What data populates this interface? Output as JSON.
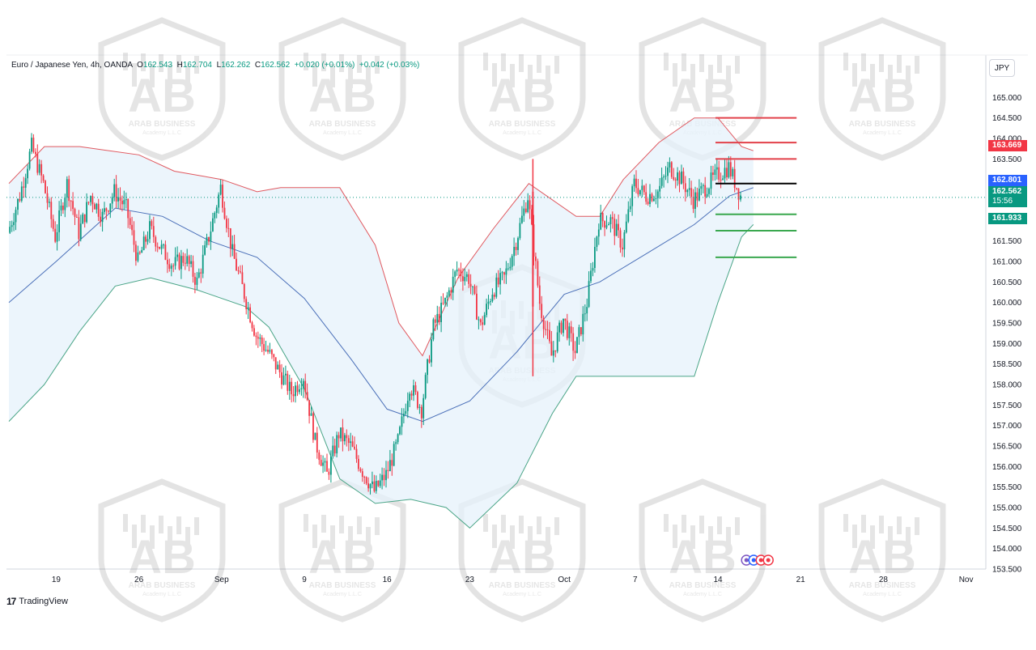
{
  "header": {
    "symbol": "Euro / Japanese Yen, 4h, OANDA",
    "open_label": "O",
    "open": "162.543",
    "high_label": "H",
    "high": "162.704",
    "low_label": "L",
    "low": "162.262",
    "close_label": "C",
    "close": "162.562",
    "change": "+0.020 (+0.01%)",
    "change2": "+0.042 (+0.03%)"
  },
  "currency_label": "JPY",
  "branding": {
    "tv_logo": "17",
    "tv_name": "TradingView"
  },
  "watermark": {
    "name": "ARAB BUSINESS",
    "sub": "Academy L.L.C",
    "letters": "AB"
  },
  "price_tags": {
    "upper": "163.669",
    "middle": "162.801",
    "last": "162.562",
    "countdown": "15:56",
    "lower": "161.933"
  },
  "colors": {
    "up": "#089981",
    "down": "#f23645",
    "band_upper": "#e0585f",
    "band_mid": "#4a6fb8",
    "band_lower": "#4aa587",
    "band_fill": "#e6f2fb",
    "resistance": "#e2414a",
    "support": "#3aa84f",
    "pivot": "#000000",
    "middle_tag": "#2962ff",
    "upper_tag": "#f23645",
    "last_tag": "#089981"
  },
  "chart_data": {
    "type": "candlestick",
    "symbol": "EURJPY",
    "timeframe": "4h",
    "y_ticks": [
      "165.000",
      "164.500",
      "164.000",
      "163.500",
      "163.000",
      "162.500",
      "162.000",
      "161.500",
      "161.000",
      "160.500",
      "160.000",
      "159.500",
      "159.000",
      "158.500",
      "158.000",
      "157.500",
      "157.000",
      "156.500",
      "156.000",
      "155.500",
      "155.000",
      "154.500",
      "154.000",
      "153.500"
    ],
    "ylim": [
      153.5,
      165.5
    ],
    "x_ticks": [
      "19",
      "26",
      "Sep",
      "9",
      "16",
      "23",
      "Oct",
      "7",
      "14",
      "21",
      "28",
      "Nov"
    ],
    "close_path": [
      {
        "d": "Aug 15",
        "c": 161.7
      },
      {
        "d": "Aug 16",
        "c": 162.6
      },
      {
        "d": "Aug 17",
        "c": 163.8
      },
      {
        "d": "Aug 18",
        "c": 162.9
      },
      {
        "d": "Aug 19",
        "c": 161.6
      },
      {
        "d": "Aug 20",
        "c": 162.9
      },
      {
        "d": "Aug 21",
        "c": 161.7
      },
      {
        "d": "Aug 22",
        "c": 162.6
      },
      {
        "d": "Aug 23",
        "c": 162.1
      },
      {
        "d": "Aug 24",
        "c": 162.7
      },
      {
        "d": "Aug 25",
        "c": 162.3
      },
      {
        "d": "Aug 26",
        "c": 161.0
      },
      {
        "d": "Aug 27",
        "c": 161.8
      },
      {
        "d": "Aug 28",
        "c": 161.3
      },
      {
        "d": "Aug 29",
        "c": 160.9
      },
      {
        "d": "Aug 30",
        "c": 161.1
      },
      {
        "d": "Aug 31",
        "c": 160.5
      },
      {
        "d": "Sep 1",
        "c": 161.6
      },
      {
        "d": "Sep 2",
        "c": 162.8
      },
      {
        "d": "Sep 3",
        "c": 161.2
      },
      {
        "d": "Sep 4",
        "c": 160.2
      },
      {
        "d": "Sep 5",
        "c": 159.2
      },
      {
        "d": "Sep 6",
        "c": 158.8
      },
      {
        "d": "Sep 7",
        "c": 158.3
      },
      {
        "d": "Sep 8",
        "c": 157.8
      },
      {
        "d": "Sep 9",
        "c": 158.2
      },
      {
        "d": "Sep 10",
        "c": 156.6
      },
      {
        "d": "Sep 11",
        "c": 155.8
      },
      {
        "d": "Sep 12",
        "c": 156.8
      },
      {
        "d": "Sep 13",
        "c": 156.5
      },
      {
        "d": "Sep 14",
        "c": 155.9
      },
      {
        "d": "Sep 15",
        "c": 155.4
      },
      {
        "d": "Sep 16",
        "c": 155.8
      },
      {
        "d": "Sep 17",
        "c": 156.6
      },
      {
        "d": "Sep 18",
        "c": 158.0
      },
      {
        "d": "Sep 19",
        "c": 157.4
      },
      {
        "d": "Sep 20",
        "c": 159.4
      },
      {
        "d": "Sep 21",
        "c": 160.0
      },
      {
        "d": "Sep 22",
        "c": 160.8
      },
      {
        "d": "Sep 23",
        "c": 160.6
      },
      {
        "d": "Sep 24",
        "c": 159.4
      },
      {
        "d": "Sep 25",
        "c": 160.3
      },
      {
        "d": "Sep 26",
        "c": 160.6
      },
      {
        "d": "Sep 27",
        "c": 161.5
      },
      {
        "d": "Sep 28",
        "c": 162.6
      },
      {
        "d": "Sep 29",
        "c": 160.0
      },
      {
        "d": "Sep 30",
        "c": 158.7
      },
      {
        "d": "Oct 1",
        "c": 159.6
      },
      {
        "d": "Oct 2",
        "c": 158.8
      },
      {
        "d": "Oct 3",
        "c": 160.0
      },
      {
        "d": "Oct 4",
        "c": 162.0
      },
      {
        "d": "Oct 5",
        "c": 162.0
      },
      {
        "d": "Oct 6",
        "c": 161.4
      },
      {
        "d": "Oct 7",
        "c": 162.9
      },
      {
        "d": "Oct 8",
        "c": 162.6
      },
      {
        "d": "Oct 9",
        "c": 162.7
      },
      {
        "d": "Oct 10",
        "c": 163.3
      },
      {
        "d": "Oct 11",
        "c": 163.0
      },
      {
        "d": "Oct 12",
        "c": 162.5
      },
      {
        "d": "Oct 13",
        "c": 162.8
      },
      {
        "d": "Oct 14",
        "c": 163.1
      },
      {
        "d": "Oct 15",
        "c": 163.3
      },
      {
        "d": "Oct 16",
        "c": 162.6
      }
    ],
    "bollinger": {
      "upper": [
        {
          "d": "Aug 15",
          "v": 162.9
        },
        {
          "d": "Aug 18",
          "v": 163.8
        },
        {
          "d": "Aug 21",
          "v": 163.8
        },
        {
          "d": "Aug 26",
          "v": 163.6
        },
        {
          "d": "Aug 29",
          "v": 163.2
        },
        {
          "d": "Sep 2",
          "v": 163.0
        },
        {
          "d": "Sep 5",
          "v": 162.7
        },
        {
          "d": "Sep 7",
          "v": 162.8
        },
        {
          "d": "Sep 10",
          "v": 162.8
        },
        {
          "d": "Sep 12",
          "v": 162.8
        },
        {
          "d": "Sep 15",
          "v": 161.4
        },
        {
          "d": "Sep 17",
          "v": 159.5
        },
        {
          "d": "Sep 19",
          "v": 158.7
        },
        {
          "d": "Sep 22",
          "v": 160.6
        },
        {
          "d": "Sep 25",
          "v": 161.8
        },
        {
          "d": "Sep 28",
          "v": 162.9
        },
        {
          "d": "Oct 2",
          "v": 162.1
        },
        {
          "d": "Oct 4",
          "v": 162.1
        },
        {
          "d": "Oct 6",
          "v": 163.0
        },
        {
          "d": "Oct 9",
          "v": 163.9
        },
        {
          "d": "Oct 12",
          "v": 164.5
        },
        {
          "d": "Oct 14",
          "v": 164.5
        },
        {
          "d": "Oct 16",
          "v": 163.8
        },
        {
          "d": "Oct 17",
          "v": 163.7
        }
      ],
      "middle": [
        {
          "d": "Aug 15",
          "v": 160.0
        },
        {
          "d": "Aug 19",
          "v": 161.0
        },
        {
          "d": "Aug 24",
          "v": 162.3
        },
        {
          "d": "Aug 28",
          "v": 162.1
        },
        {
          "d": "Sep 1",
          "v": 161.5
        },
        {
          "d": "Sep 5",
          "v": 161.1
        },
        {
          "d": "Sep 9",
          "v": 160.1
        },
        {
          "d": "Sep 13",
          "v": 158.6
        },
        {
          "d": "Sep 16",
          "v": 157.4
        },
        {
          "d": "Sep 19",
          "v": 157.1
        },
        {
          "d": "Sep 23",
          "v": 157.6
        },
        {
          "d": "Sep 27",
          "v": 158.8
        },
        {
          "d": "Oct 1",
          "v": 160.2
        },
        {
          "d": "Oct 4",
          "v": 160.5
        },
        {
          "d": "Oct 8",
          "v": 161.2
        },
        {
          "d": "Oct 12",
          "v": 161.9
        },
        {
          "d": "Oct 15",
          "v": 162.6
        },
        {
          "d": "Oct 17",
          "v": 162.8
        }
      ],
      "lower": [
        {
          "d": "Aug 15",
          "v": 157.1
        },
        {
          "d": "Aug 18",
          "v": 158.0
        },
        {
          "d": "Aug 21",
          "v": 159.3
        },
        {
          "d": "Aug 24",
          "v": 160.4
        },
        {
          "d": "Aug 27",
          "v": 160.6
        },
        {
          "d": "Aug 31",
          "v": 160.3
        },
        {
          "d": "Sep 4",
          "v": 159.9
        },
        {
          "d": "Sep 6",
          "v": 159.4
        },
        {
          "d": "Sep 9",
          "v": 157.9
        },
        {
          "d": "Sep 12",
          "v": 155.7
        },
        {
          "d": "Sep 15",
          "v": 155.1
        },
        {
          "d": "Sep 18",
          "v": 155.2
        },
        {
          "d": "Sep 21",
          "v": 155.0
        },
        {
          "d": "Sep 23",
          "v": 154.5
        },
        {
          "d": "Sep 27",
          "v": 155.6
        },
        {
          "d": "Sep 30",
          "v": 157.3
        },
        {
          "d": "Oct 2",
          "v": 158.2
        },
        {
          "d": "Oct 5",
          "v": 158.2
        },
        {
          "d": "Oct 9",
          "v": 158.2
        },
        {
          "d": "Oct 12",
          "v": 158.2
        },
        {
          "d": "Oct 14",
          "v": 160.0
        },
        {
          "d": "Oct 16",
          "v": 161.6
        },
        {
          "d": "Oct 17",
          "v": 161.9
        }
      ]
    },
    "levels": [
      {
        "type": "resistance",
        "price": 164.5
      },
      {
        "type": "resistance",
        "price": 163.9
      },
      {
        "type": "resistance",
        "price": 163.5
      },
      {
        "type": "pivot",
        "price": 162.9
      },
      {
        "type": "support",
        "price": 162.15
      },
      {
        "type": "support",
        "price": 161.75
      },
      {
        "type": "support",
        "price": 161.1
      }
    ],
    "last_price": 162.562
  }
}
